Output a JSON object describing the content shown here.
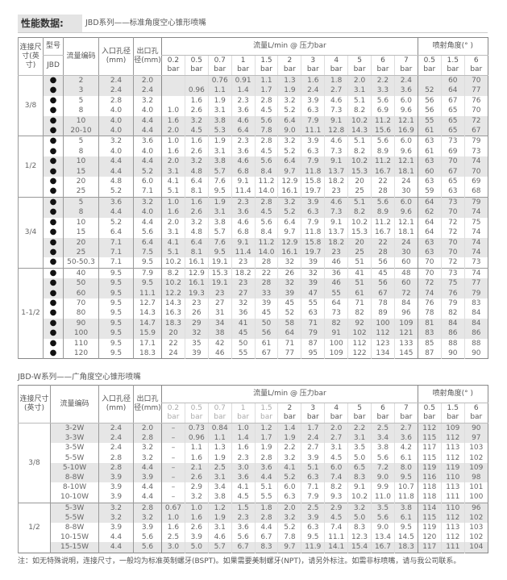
{
  "header": {
    "title": "性能数据:",
    "subtitle": "JBD系列——标准角度空心锥形喷嘴"
  },
  "table1": {
    "col_connection": "连接尺寸(英寸)",
    "col_model": "型号",
    "col_model_sub": "JBD",
    "col_code": "流量编码",
    "col_inlet": "入口孔径(mm)",
    "col_outlet": "出口孔径(mm)",
    "flow_label": "流量L/min @ 压力bar",
    "angle_label": "喷射角度(° )",
    "pressures": [
      "0.2",
      "0.5",
      "0.7",
      "1",
      "1.5",
      "2",
      "3",
      "4",
      "5",
      "6",
      "7"
    ],
    "angle_pressures": [
      "0.5",
      "1.5",
      "6"
    ],
    "unit": "bar",
    "model_mark": "●",
    "groups": [
      {
        "size": "3/8",
        "rows": [
          [
            "2",
            "2.4",
            "2.0",
            "",
            "",
            "0.76",
            "0.91",
            "1.1",
            "1.3",
            "1.6",
            "1.8",
            "2.0",
            "2.2",
            "2.4",
            "",
            "60",
            "70"
          ],
          [
            "3",
            "2.4",
            "2.4",
            "",
            "0.96",
            "1.1",
            "1.4",
            "1.7",
            "1.9",
            "2.4",
            "2.7",
            "3.1",
            "3.3",
            "3.6",
            "52",
            "64",
            "77"
          ],
          [
            "5",
            "2.8",
            "3.2",
            "",
            "1.6",
            "1.9",
            "2.3",
            "2.8",
            "3.2",
            "3.9",
            "4.6",
            "5.1",
            "5.6",
            "6.0",
            "56",
            "67",
            "76"
          ],
          [
            "8",
            "4.0",
            "4.0",
            "1.0",
            "2.6",
            "3.1",
            "3.6",
            "4.5",
            "5.2",
            "6.3",
            "7.3",
            "8.2",
            "6.9",
            "9.6",
            "56",
            "65",
            "70"
          ],
          [
            "10",
            "4.0",
            "4.4",
            "1.6",
            "3.2",
            "3.8",
            "4.6",
            "5.6",
            "6.4",
            "7.9",
            "9.1",
            "10.2",
            "11.2",
            "12.1",
            "55",
            "65",
            "72"
          ],
          [
            "20-10",
            "4.0",
            "4.4",
            "2.0",
            "4.5",
            "5.3",
            "6.4",
            "7.8",
            "9.0",
            "11.1",
            "12.8",
            "14.3",
            "15.6",
            "16.9",
            "61",
            "65",
            "67"
          ]
        ]
      },
      {
        "size": "1/2",
        "rows": [
          [
            "5",
            "3.2",
            "3.6",
            "1.0",
            "1.6",
            "1.9",
            "2.3",
            "2.8",
            "3.2",
            "3.9",
            "4.6",
            "5.1",
            "5.6",
            "6.0",
            "63",
            "73",
            "79"
          ],
          [
            "8",
            "4.0",
            "4.0",
            "1.6",
            "2.6",
            "3.1",
            "3.6",
            "4.5",
            "5.2",
            "6.3",
            "7.3",
            "8.2",
            "8.9",
            "9.6",
            "61",
            "69",
            "73"
          ],
          [
            "10",
            "4.4",
            "4.4",
            "2.0",
            "3.2",
            "3.8",
            "4.6",
            "5.6",
            "6.4",
            "7.9",
            "9.1",
            "10.2",
            "11.2",
            "12.1",
            "63",
            "70",
            "74"
          ],
          [
            "15",
            "4.4",
            "5.2",
            "3.1",
            "4.8",
            "5.7",
            "6.8",
            "8.4",
            "9.7",
            "11.8",
            "13.7",
            "15.3",
            "16.7",
            "18.1",
            "60",
            "67",
            "70"
          ],
          [
            "20",
            "4.8",
            "6.0",
            "4.1",
            "6.4",
            "7.6",
            "9.1",
            "11.2",
            "12.9",
            "15.8",
            "18.2",
            "20",
            "22",
            "24",
            "63",
            "65",
            "69"
          ],
          [
            "25",
            "5.2",
            "7.1",
            "5.1",
            "8.1",
            "9.5",
            "11.4",
            "14.0",
            "16.1",
            "19.7",
            "23",
            "25",
            "28",
            "30",
            "59",
            "63",
            "68"
          ]
        ]
      },
      {
        "size": "3/4",
        "rows": [
          [
            "5",
            "3.6",
            "3.2",
            "1.0",
            "1.6",
            "1.9",
            "2.3",
            "2.8",
            "3.2",
            "3.9",
            "4.6",
            "5.1",
            "5.6",
            "6.0",
            "64",
            "73",
            "79"
          ],
          [
            "8",
            "4.4",
            "4.0",
            "1.6",
            "2.6",
            "3.1",
            "3.6",
            "4.5",
            "5.2",
            "6.3",
            "7.3",
            "8.2",
            "8.9",
            "9.6",
            "62",
            "70",
            "74"
          ],
          [
            "10",
            "5.2",
            "4.4",
            "2.0",
            "3.2",
            "3.8",
            "4.6",
            "5.6",
            "6.4",
            "7.9",
            "9.1",
            "10.2",
            "11.2",
            "12.1",
            "64",
            "72",
            "75"
          ],
          [
            "15",
            "6.4",
            "5.6",
            "3.1",
            "4.8",
            "5.7",
            "6.8",
            "8.4",
            "9.7",
            "11.8",
            "13.7",
            "15.3",
            "16.7",
            "18.1",
            "64",
            "72",
            "74"
          ],
          [
            "20",
            "7.1",
            "6.4",
            "4.1",
            "6.4",
            "7.6",
            "9.1",
            "11.2",
            "12.9",
            "15.8",
            "18.2",
            "20",
            "22",
            "24",
            "63",
            "70",
            "74"
          ],
          [
            "25",
            "7.1",
            "7.5",
            "5.1",
            "8.1",
            "9.5",
            "11.4",
            "14.0",
            "16.1",
            "19.7",
            "23",
            "25",
            "28",
            "30",
            "63",
            "70",
            "74"
          ],
          [
            "50-50.3",
            "7.1",
            "9.5",
            "10.2",
            "16.1",
            "19.1",
            "23",
            "28",
            "32",
            "39",
            "46",
            "51",
            "56",
            "60",
            "70",
            "72",
            "73"
          ]
        ]
      },
      {
        "size": "1-1/2",
        "rows": [
          [
            "40",
            "9.5",
            "7.9",
            "8.2",
            "12.9",
            "15.3",
            "18.2",
            "22",
            "26",
            "32",
            "36",
            "41",
            "45",
            "48",
            "70",
            "73",
            "74"
          ],
          [
            "50",
            "9.5",
            "9.5",
            "10.2",
            "16.1",
            "19.1",
            "23",
            "28",
            "32",
            "39",
            "46",
            "51",
            "56",
            "60",
            "72",
            "75",
            "77"
          ],
          [
            "60",
            "9.5",
            "11.1",
            "12.2",
            "19.3",
            "23",
            "27",
            "33",
            "39",
            "47",
            "55",
            "61",
            "67",
            "72",
            "74",
            "76",
            "79"
          ],
          [
            "70",
            "9.5",
            "12.7",
            "14.3",
            "23",
            "27",
            "32",
            "39",
            "45",
            "55",
            "64",
            "71",
            "78",
            "84",
            "76",
            "79",
            "83"
          ],
          [
            "80",
            "9.5",
            "14.3",
            "16.3",
            "26",
            "31",
            "36",
            "45",
            "52",
            "63",
            "73",
            "82",
            "89",
            "96",
            "78",
            "82",
            "84"
          ],
          [
            "90",
            "9.5",
            "14.7",
            "18.3",
            "29",
            "34",
            "41",
            "50",
            "58",
            "71",
            "82",
            "92",
            "100",
            "109",
            "81",
            "84",
            "84"
          ],
          [
            "100",
            "9.5",
            "15.9",
            "20",
            "32",
            "38",
            "45",
            "56",
            "64",
            "79",
            "91",
            "102",
            "112",
            "121",
            "83",
            "86",
            "86"
          ],
          [
            "110",
            "9.5",
            "17.1",
            "22",
            "35",
            "42",
            "50",
            "61",
            "71",
            "87",
            "100",
            "112",
            "123",
            "133",
            "85",
            "88",
            "88"
          ],
          [
            "120",
            "9.5",
            "18.3",
            "24",
            "39",
            "46",
            "55",
            "67",
            "77",
            "95",
            "109",
            "122",
            "134",
            "145",
            "87",
            "90",
            "90"
          ]
        ]
      }
    ]
  },
  "table2": {
    "title": "JBD-W系列——广角度空心锥形喷嘴",
    "col_connection": "连接尺寸(英寸)",
    "col_code": "流量编码",
    "col_inlet": "入口孔径(mm)",
    "col_outlet": "出口孔径(mm)",
    "flow_label": "流量L/min @ 压力bar",
    "angle_label": "喷射角度(° )",
    "groups": [
      {
        "size": "3/8",
        "rows": [
          [
            "3-2W",
            "2.4",
            "2.0",
            "–",
            "0.73",
            "0.84",
            "1.0",
            "1.2",
            "1.4",
            "1.7",
            "2.0",
            "2.2",
            "2.5",
            "2.7",
            "112",
            "109",
            "90"
          ],
          [
            "3-3W",
            "2.4",
            "2.8",
            "–",
            "0.96",
            "1.1",
            "1.4",
            "1.7",
            "1.9",
            "2.4",
            "2.7",
            "3.1",
            "3.4",
            "3.6",
            "115",
            "112",
            "97"
          ],
          [
            "3-5W",
            "2.4",
            "3.2",
            "–",
            "1.1",
            "1.3",
            "1.6",
            "1.9",
            "2.2",
            "2.7",
            "3.1",
            "3.5",
            "3.8",
            "4.2",
            "117",
            "113",
            "103"
          ],
          [
            "5-5W",
            "2.8",
            "3.2",
            "–",
            "1.6",
            "1.9",
            "2.3",
            "2.8",
            "3.2",
            "3.9",
            "4.5",
            "5.0",
            "5.6",
            "6.1",
            "115",
            "112",
            "102"
          ],
          [
            "5-10W",
            "2.8",
            "4.4",
            "–",
            "2.1",
            "2.5",
            "3.0",
            "3.6",
            "4.1",
            "5.1",
            "6.0",
            "6.5",
            "7.2",
            "8.0",
            "119",
            "119",
            "109"
          ],
          [
            "8-8W",
            "3.9",
            "3.9",
            "–",
            "2.6",
            "3.1",
            "3.6",
            "4.4",
            "5.2",
            "6.3",
            "7.4",
            "8.3",
            "9.0",
            "9.5",
            "116",
            "110",
            "98"
          ],
          [
            "8-10W",
            "3.9",
            "4.4",
            "–",
            "2.9",
            "3.4",
            "4.1",
            "5.1",
            "6.0",
            "7.1",
            "8.2",
            "9.1",
            "9.9",
            "10.7",
            "118",
            "113",
            "101"
          ],
          [
            "10-10W",
            "3.9",
            "4.4",
            "–",
            "3.2",
            "3.8",
            "4.5",
            "5.5",
            "6.3",
            "7.9",
            "9.3",
            "10.2",
            "11.0",
            "11.8",
            "118",
            "111",
            "100"
          ]
        ]
      },
      {
        "size": "1/2",
        "rows": [
          [
            "5-3W",
            "3.2",
            "2.8",
            "0.67",
            "1.0",
            "1.2",
            "1.5",
            "1.8",
            "2.0",
            "2.5",
            "2.9",
            "3.2",
            "3.5",
            "3.8",
            "114",
            "110",
            "96"
          ],
          [
            "5-5W",
            "3.2",
            "3.2",
            "1.0",
            "1.6",
            "1.9",
            "2.3",
            "2.8",
            "3.2",
            "3.9",
            "4.5",
            "5.0",
            "5.6",
            "6.1",
            "115",
            "112",
            "102"
          ],
          [
            "8-8W",
            "3.9",
            "3.9",
            "1.6",
            "2.6",
            "3.1",
            "3.6",
            "4.4",
            "5.2",
            "6.3",
            "7.4",
            "8.3",
            "9.0",
            "9.5",
            "119",
            "113",
            "103"
          ],
          [
            "10-15W",
            "4.4",
            "5.6",
            "2.5",
            "3.9",
            "4.6",
            "5.6",
            "6.7",
            "7.8",
            "9.5",
            "11.1",
            "12.3",
            "13.4",
            "14.5",
            "120",
            "112",
            "102"
          ],
          [
            "15-15W",
            "4.4",
            "5.6",
            "3.0",
            "5.0",
            "5.7",
            "6.7",
            "8.3",
            "9.7",
            "11.9",
            "14.1",
            "15.4",
            "16.7",
            "18.3",
            "117",
            "111",
            "104"
          ]
        ]
      }
    ]
  },
  "note": "注：如无特殊说明，连接尺寸，一般均为标准英制螺牙(BSPT)。如果需要美制螺牙(NPT)，请另外标注。如需非标喷嘴，请与我公司联系。"
}
